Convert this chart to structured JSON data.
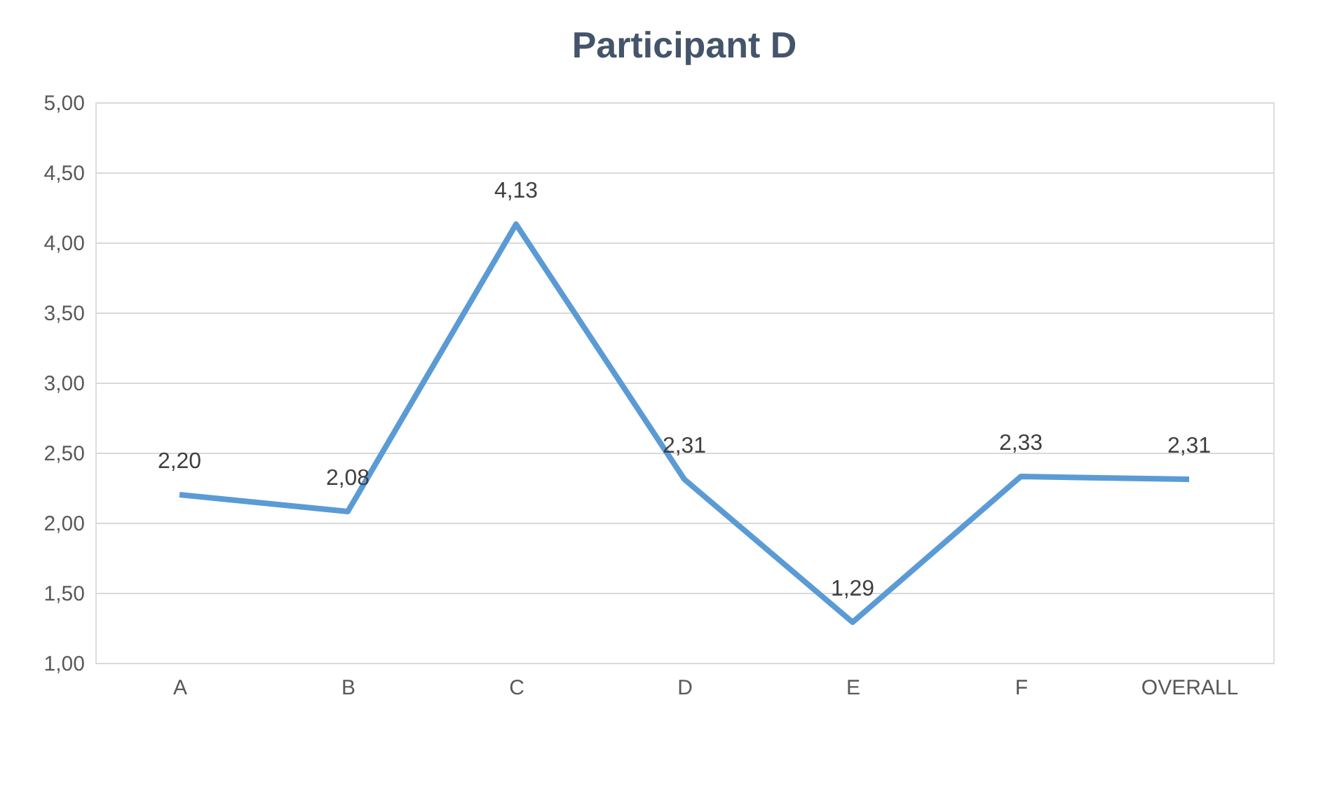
{
  "chart_data": {
    "type": "line",
    "title": "Participant D",
    "categories": [
      "A",
      "B",
      "C",
      "D",
      "E",
      "F",
      "OVERALL"
    ],
    "series": [
      {
        "color": "#5b9bd5",
        "values": [
          2.2,
          2.08,
          4.13,
          2.31,
          1.29,
          2.33,
          2.31
        ],
        "value_labels": [
          "2,20",
          "2,08",
          "4,13",
          "2,31",
          "1,29",
          "2,33",
          "2,31"
        ]
      }
    ],
    "ylim": [
      1,
      5
    ],
    "yticks": [
      {
        "value": 1,
        "label": "1,00"
      },
      {
        "value": 1.5,
        "label": "1,50"
      },
      {
        "value": 2,
        "label": "2,00"
      },
      {
        "value": 2.5,
        "label": "2,50"
      },
      {
        "value": 3,
        "label": "3,00"
      },
      {
        "value": 3.5,
        "label": "3,50"
      },
      {
        "value": 4,
        "label": "4,00"
      },
      {
        "value": 4.5,
        "label": "4,50"
      },
      {
        "value": 5,
        "label": "5,00"
      }
    ],
    "grid": "y",
    "marker": "none",
    "line_style": "solid"
  }
}
